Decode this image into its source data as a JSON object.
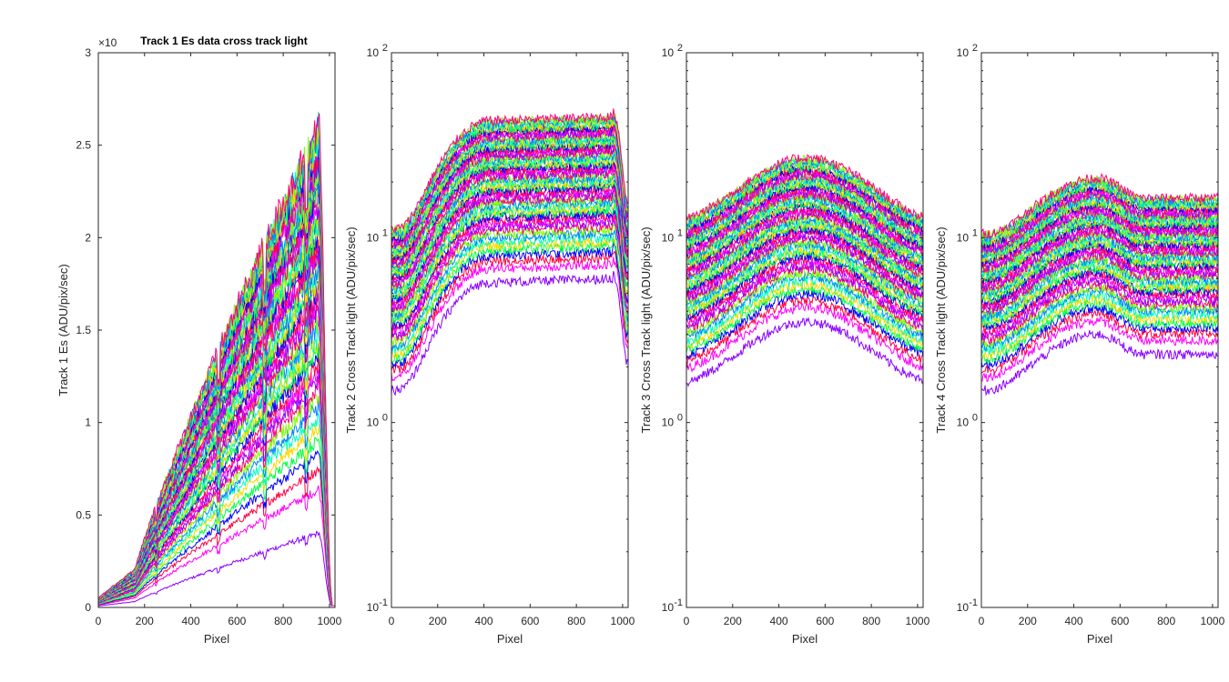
{
  "chart_data": [
    {
      "type": "line",
      "title": "Track 1 Es data cross track light",
      "xlabel": "Pixel",
      "ylabel": "Track 1 Es (ADU/pix/sec)",
      "yscale": "linear",
      "y_multiplier": "×10",
      "xlim": [
        0,
        1024
      ],
      "ylim": [
        0,
        3
      ],
      "xticks": [
        0,
        200,
        400,
        600,
        800,
        1000
      ],
      "xtick_labels": [
        "0",
        "200",
        "400",
        "600",
        "800",
        "1000"
      ],
      "yticks": [
        0,
        0.5,
        1,
        1.5,
        2,
        2.5,
        3
      ],
      "ytick_labels": [
        "0",
        "0.5",
        "1",
        "1.5",
        "2",
        "2.5",
        "3"
      ],
      "grid": false,
      "n_series": 60,
      "series_shape": "rising",
      "series_level_range": [
        0.4,
        2.6
      ],
      "palette": [
        "#8b00ff",
        "#ff00ff",
        "#ff0040",
        "#0000ff",
        "#00ff40",
        "#ffd700",
        "#00ffbf",
        "#0080ff",
        "#80ff00",
        "#ff0080"
      ]
    },
    {
      "type": "line",
      "title": "",
      "xlabel": "Pixel",
      "ylabel": "Track 2  Cross Track light (ADU/pix/sec)",
      "yscale": "log",
      "xlim": [
        0,
        1024
      ],
      "ylim": [
        0.1,
        100
      ],
      "xticks": [
        0,
        200,
        400,
        600,
        800,
        1000
      ],
      "xtick_labels": [
        "0",
        "200",
        "400",
        "600",
        "800",
        "1000"
      ],
      "yticks": [
        0.1,
        1,
        10,
        100
      ],
      "ytick_labels": [
        "10",
        "10",
        "10",
        "10"
      ],
      "ytick_exponents": [
        "-1",
        "0",
        "1",
        "2"
      ],
      "grid": false,
      "n_series": 60,
      "series_shape": "plateau",
      "series_level_range": [
        6,
        45
      ],
      "palette": [
        "#8b00ff",
        "#ff00ff",
        "#ff0040",
        "#0000ff",
        "#00ff40",
        "#ffd700",
        "#00ffbf",
        "#0080ff",
        "#80ff00",
        "#ff0080"
      ]
    },
    {
      "type": "line",
      "title": "",
      "xlabel": "Pixel",
      "ylabel": "Track 3  Cross Track light (ADU/pix/sec)",
      "yscale": "log",
      "xlim": [
        0,
        1024
      ],
      "ylim": [
        0.1,
        100
      ],
      "xticks": [
        0,
        200,
        400,
        600,
        800,
        1000
      ],
      "xtick_labels": [
        "0",
        "200",
        "400",
        "600",
        "800",
        "1000"
      ],
      "yticks": [
        0.1,
        1,
        10,
        100
      ],
      "ytick_labels": [
        "10",
        "10",
        "10",
        "10"
      ],
      "ytick_exponents": [
        "-1",
        "0",
        "1",
        "2"
      ],
      "grid": false,
      "n_series": 60,
      "series_shape": "hump",
      "series_level_range": [
        3.5,
        27
      ],
      "palette": [
        "#8b00ff",
        "#ff00ff",
        "#ff0040",
        "#0000ff",
        "#00ff40",
        "#ffd700",
        "#00ffbf",
        "#0080ff",
        "#80ff00",
        "#ff0080"
      ]
    },
    {
      "type": "line",
      "title": "",
      "xlabel": "Pixel",
      "ylabel": "Track 4  Cross Track light (ADU/pix/sec)",
      "yscale": "log",
      "xlim": [
        0,
        1024
      ],
      "ylim": [
        0.1,
        100
      ],
      "xticks": [
        0,
        200,
        400,
        600,
        800,
        1000
      ],
      "xtick_labels": [
        "0",
        "200",
        "400",
        "600",
        "800",
        "1000"
      ],
      "yticks": [
        0.1,
        1,
        10,
        100
      ],
      "ytick_labels": [
        "10",
        "10",
        "10",
        "10"
      ],
      "ytick_exponents": [
        "-1",
        "0",
        "1",
        "2"
      ],
      "grid": false,
      "n_series": 60,
      "series_shape": "hump-flat",
      "series_level_range": [
        3,
        21
      ],
      "palette": [
        "#8b00ff",
        "#ff00ff",
        "#ff0040",
        "#0000ff",
        "#00ff40",
        "#ffd700",
        "#00ffbf",
        "#0080ff",
        "#80ff00",
        "#ff0080"
      ]
    }
  ]
}
